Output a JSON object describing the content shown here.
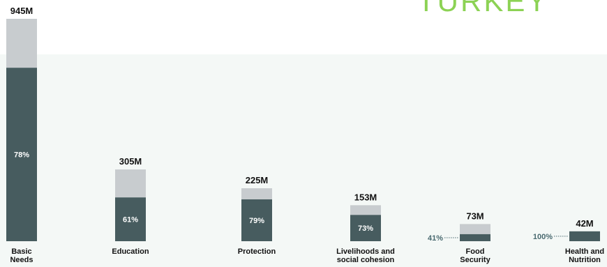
{
  "header": {
    "title": "TURKEY"
  },
  "chart_data": {
    "type": "bar",
    "categories": [
      [
        "Basic",
        "Needs"
      ],
      [
        "Education"
      ],
      [
        "Protection"
      ],
      [
        "Livelihoods and",
        "social cohesion"
      ],
      [
        "Food",
        "Security"
      ],
      [
        "Health and",
        "Nutrition"
      ]
    ],
    "values": [
      945,
      305,
      225,
      153,
      73,
      42
    ],
    "value_labels": [
      "945M",
      "305M",
      "225M",
      "153M",
      "73M",
      "42M"
    ],
    "percent_values": [
      78,
      61,
      79,
      73,
      41,
      100
    ],
    "percent_labels": [
      "78%",
      "61%",
      "79%",
      "73%",
      "41%",
      "100%"
    ],
    "series": [
      {
        "values_percent": [
          78,
          61,
          79,
          73,
          41,
          100
        ],
        "color": "#475c5f"
      },
      {
        "values_percent": [
          22,
          39,
          21,
          27,
          59,
          0
        ],
        "color": "#c8cccf"
      }
    ],
    "colors": {
      "filled": "#475c5f",
      "remaining": "#c8cccf",
      "title": "#8cd254",
      "panel": "#f4f8f6",
      "outside_label": "#4a6a70"
    }
  }
}
